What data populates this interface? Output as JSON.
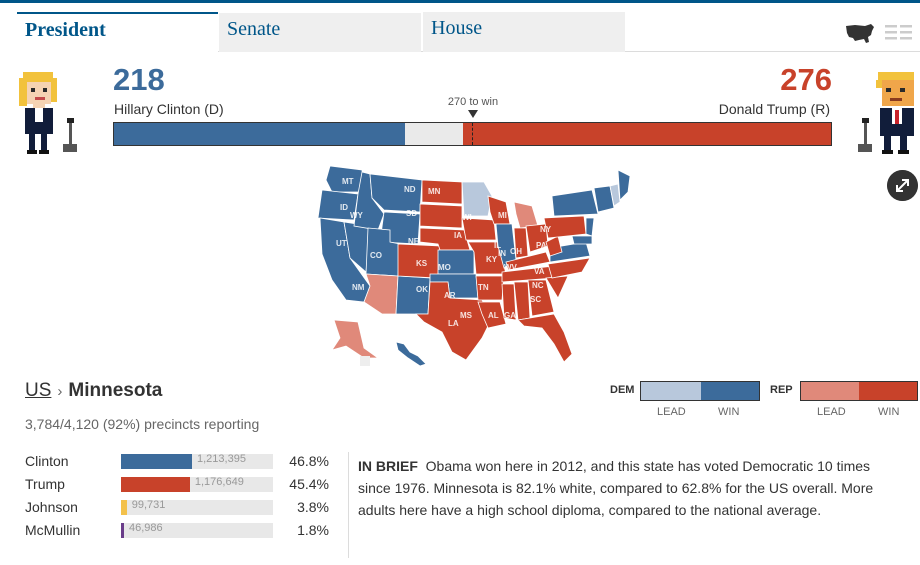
{
  "tabs": [
    {
      "label": "President",
      "active": true
    },
    {
      "label": "Senate",
      "active": false
    },
    {
      "label": "House",
      "active": false
    }
  ],
  "view_toggle": {
    "map_icon": "us-map-icon",
    "list_icon": "list-icon"
  },
  "tally": {
    "dem": {
      "votes": "218",
      "name": "Hillary Clinton (D)",
      "electoral": 218,
      "color": "#3c6b9b"
    },
    "rep": {
      "votes": "276",
      "name": "Donald Trump (R)",
      "electoral": 276,
      "color": "#c8422a"
    },
    "threshold_label": "270 to win",
    "total": 538,
    "threshold": 270
  },
  "map": {
    "colors": {
      "dem_win": "#3c6b9b",
      "dem_lead": "#b8c8dc",
      "rep_win": "#c8422a",
      "rep_lead": "#e0897a"
    },
    "state_labels": [
      "MT",
      "ND",
      "MN",
      "ID",
      "WY",
      "SD",
      "WI",
      "MI",
      "NY",
      "UT",
      "NE",
      "IA",
      "IL",
      "IN",
      "OH",
      "PA",
      "CO",
      "KS",
      "MO",
      "WV",
      "VA",
      "NM",
      "OK",
      "AR",
      "TN",
      "KY",
      "NC",
      "SC",
      "MS",
      "AL",
      "GA",
      "LA"
    ]
  },
  "breadcrumb": {
    "root": "US",
    "separator": "›",
    "state": "Minnesota"
  },
  "precincts": "3,784/4,120 (92%) precincts reporting",
  "legend": {
    "dem": {
      "label": "DEM",
      "lead": "LEAD",
      "win": "WIN"
    },
    "rep": {
      "label": "REP",
      "lead": "LEAD",
      "win": "WIN"
    }
  },
  "results": [
    {
      "name": "Clinton",
      "votes": "1,213,395",
      "pct": "46.8%",
      "share": 0.468,
      "color": "#3c6b9b"
    },
    {
      "name": "Trump",
      "votes": "1,176,649",
      "pct": "45.4%",
      "share": 0.454,
      "color": "#c8422a"
    },
    {
      "name": "Johnson",
      "votes": "99,731",
      "pct": "3.8%",
      "share": 0.038,
      "color": "#f3c14b"
    },
    {
      "name": "McMullin",
      "votes": "46,986",
      "pct": "1.8%",
      "share": 0.018,
      "color": "#6a3d8a"
    }
  ],
  "brief": {
    "heading": "IN BRIEF",
    "text": "Obama won here in 2012, and this state has voted Democratic 10 times since 1976. Minnesota is 82.1% white, compared to 62.8% for the US overall. More adults here have a high school diploma, compared to the national average."
  }
}
